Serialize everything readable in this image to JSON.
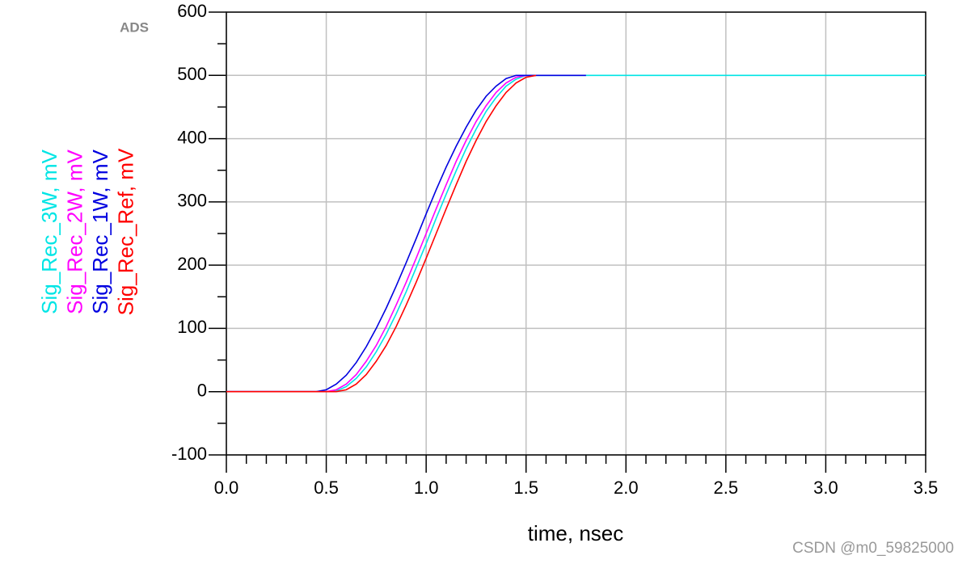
{
  "chart_data": {
    "type": "line",
    "brand": "ADS",
    "watermark": "CSDN @m0_59825000",
    "xlabel": "time, nsec",
    "x": [
      0,
      0.2,
      0.4,
      0.45,
      0.5,
      0.55,
      0.6,
      0.65,
      0.7,
      0.75,
      0.8,
      0.85,
      0.9,
      0.95,
      1.0,
      1.05,
      1.1,
      1.15,
      1.2,
      1.25,
      1.3,
      1.35,
      1.4,
      1.45,
      1.5,
      1.55,
      1.6,
      1.8,
      2.0,
      2.5,
      3.0,
      3.5
    ],
    "series": [
      {
        "name": "Sig_Rec_3W, mV",
        "color": "#00e5e5",
        "values": [
          0,
          0,
          0,
          0,
          0,
          1,
          8,
          21,
          39,
          63,
          91,
          123,
          158,
          196,
          234,
          274,
          312,
          349,
          384,
          415,
          443,
          465,
          483,
          494,
          500,
          500,
          500,
          500,
          500,
          500,
          500,
          500
        ]
      },
      {
        "name": "Sig_Rec_2W, mV",
        "color": "#ff00ff",
        "values": [
          0,
          0,
          0,
          0,
          0,
          3,
          12,
          27,
          48,
          73,
          103,
          137,
          173,
          211,
          250,
          289,
          327,
          364,
          397,
          427,
          452,
          473,
          488,
          497,
          500,
          500,
          null,
          null,
          null,
          null,
          null,
          null
        ]
      },
      {
        "name": "Sig_Rec_1W, mV",
        "color": "#0000e0",
        "values": [
          0,
          0,
          0,
          0,
          3,
          12,
          26,
          46,
          71,
          100,
          132,
          167,
          204,
          242,
          281,
          319,
          355,
          388,
          418,
          445,
          467,
          483,
          495,
          500,
          500,
          500,
          500,
          500,
          null,
          null,
          null,
          null
        ]
      },
      {
        "name": "Sig_Rec_Ref, mV",
        "color": "#ff0000",
        "values": [
          0,
          0,
          0,
          0,
          0,
          0,
          3,
          12,
          27,
          48,
          73,
          103,
          137,
          173,
          211,
          250,
          289,
          327,
          364,
          397,
          427,
          452,
          473,
          488,
          497,
          500,
          null,
          null,
          null,
          null,
          null,
          null
        ]
      }
    ],
    "xlim": [
      0,
      3.5
    ],
    "xticks": [
      {
        "value": 0,
        "label": "0.0"
      },
      {
        "value": 0.5,
        "label": "0.5"
      },
      {
        "value": 1,
        "label": "1.0"
      },
      {
        "value": 1.5,
        "label": "1.5"
      },
      {
        "value": 2,
        "label": "2.0"
      },
      {
        "value": 2.5,
        "label": "2.5"
      },
      {
        "value": 3,
        "label": "3.0"
      },
      {
        "value": 3.5,
        "label": "3.5"
      }
    ],
    "xminorticks": [
      0.1,
      0.2,
      0.3,
      0.4,
      0.6,
      0.7,
      0.8,
      0.9,
      1.1,
      1.2,
      1.3,
      1.4,
      1.6,
      1.7,
      1.8,
      1.9,
      2.1,
      2.2,
      2.3,
      2.4,
      2.6,
      2.7,
      2.8,
      2.9,
      3.1,
      3.2,
      3.3,
      3.4
    ],
    "ylim": [
      -100,
      600
    ],
    "yticks": [
      -100,
      0,
      100,
      200,
      300,
      400,
      500,
      600
    ],
    "yminorticks": [
      -50,
      50,
      150,
      250,
      350,
      450,
      550
    ],
    "grid": true
  }
}
